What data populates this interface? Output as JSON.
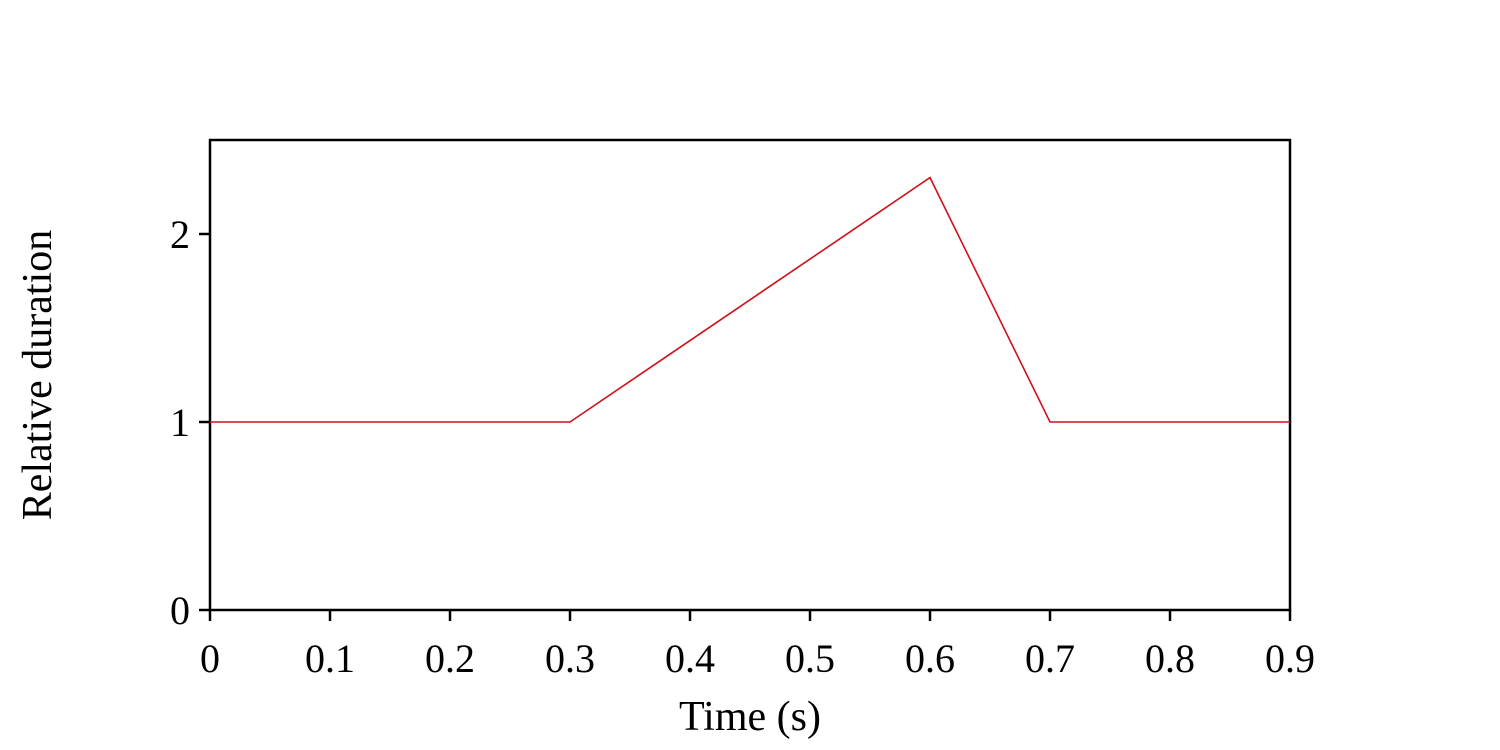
{
  "chart_data": {
    "type": "line",
    "title": "",
    "xlabel": "Time (s)",
    "ylabel": "Relative duration",
    "xlim": [
      0,
      0.9
    ],
    "ylim": [
      0,
      2.5
    ],
    "xticks": [
      0,
      0.1,
      0.2,
      0.3,
      0.4,
      0.5,
      0.6,
      0.7,
      0.8,
      0.9
    ],
    "xtick_labels": [
      "0",
      "0.1",
      "0.2",
      "0.3",
      "0.4",
      "0.5",
      "0.6",
      "0.7",
      "0.8",
      "0.9"
    ],
    "yticks": [
      0,
      1,
      2
    ],
    "ytick_labels": [
      "0",
      "1",
      "2"
    ],
    "grid": false,
    "legend": false,
    "series": [
      {
        "color": "#d0101a",
        "x": [
          0,
          0.3,
          0.6,
          0.7,
          0.9
        ],
        "y": [
          1,
          1,
          2.3,
          1,
          1
        ]
      }
    ]
  }
}
